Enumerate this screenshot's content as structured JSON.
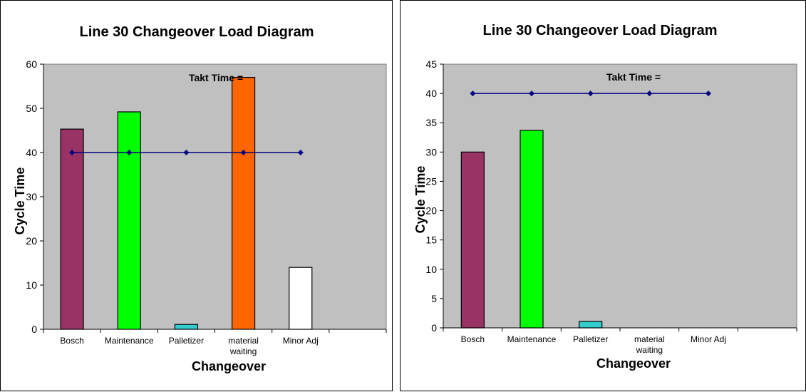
{
  "chart_data": [
    {
      "type": "bar",
      "title": "Line 30 Changeover Load Diagram",
      "xlabel": "Changeover",
      "ylabel": "Cycle Time",
      "ylim": [
        0,
        60
      ],
      "yticks": [
        0,
        10,
        20,
        30,
        40,
        50,
        60
      ],
      "categories": [
        [
          "Bosch"
        ],
        [
          "Maintenance"
        ],
        [
          "Palletizer"
        ],
        [
          "material",
          "waiting"
        ],
        [
          "Minor Adj"
        ]
      ],
      "values": [
        45.3,
        49.2,
        1.1,
        57,
        14
      ],
      "bar_colors": [
        "#993366",
        "#00ff00",
        "#33cccc",
        "#ff6600",
        "#ffffff"
      ],
      "line": {
        "label": "Takt Time =",
        "values": [
          40,
          40,
          40,
          40,
          40
        ],
        "color": "#000080"
      },
      "plot_background": "#c0c0c0",
      "grid": false,
      "legend": "none"
    },
    {
      "type": "bar",
      "title": "Line 30 Changeover Load Diagram",
      "xlabel": "Changeover",
      "ylabel": "Cycle Time",
      "ylim": [
        0,
        45
      ],
      "yticks": [
        0,
        5,
        10,
        15,
        20,
        25,
        30,
        35,
        40,
        45
      ],
      "categories": [
        [
          "Bosch"
        ],
        [
          "Maintenance"
        ],
        [
          "Palletizer"
        ],
        [
          "material",
          "waiting"
        ],
        [
          "Minor Adj"
        ]
      ],
      "values": [
        30,
        33.7,
        1.1,
        0,
        0
      ],
      "bar_colors": [
        "#993366",
        "#00ff00",
        "#33cccc",
        "#ff6600",
        "#ffffff"
      ],
      "line": {
        "label": "Takt Time =",
        "values": [
          40,
          40,
          40,
          40,
          40
        ],
        "color": "#000080"
      },
      "plot_background": "#c0c0c0",
      "grid": false,
      "legend": "none"
    }
  ]
}
